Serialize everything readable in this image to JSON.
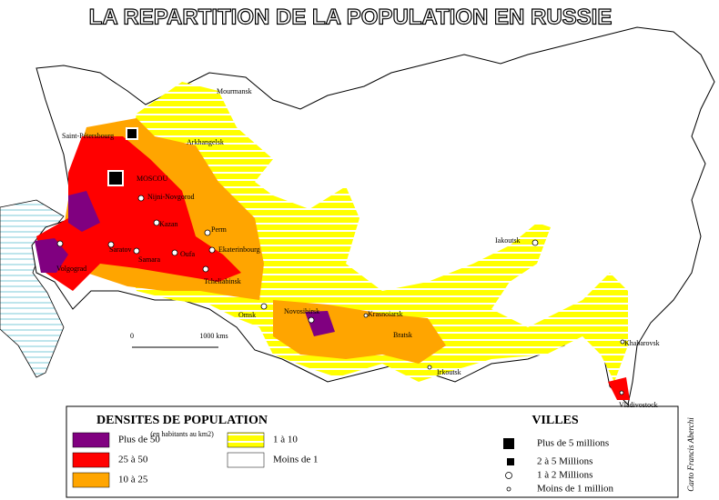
{
  "title": "LA REPARTITION DE LA POPULATION EN RUSSIE",
  "cities": [
    {
      "label": "Mourmansk"
    },
    {
      "label": "Arkhangelsk"
    },
    {
      "label": "Saint-Pétersbourg"
    },
    {
      "label": "MOSCOU"
    },
    {
      "label": "Nijni-Novgorod"
    },
    {
      "label": "Kazan"
    },
    {
      "label": "Perm"
    },
    {
      "label": "Ekaterinbourg"
    },
    {
      "label": "Saratov"
    },
    {
      "label": "Samara"
    },
    {
      "label": "Oufa"
    },
    {
      "label": "Volgograd"
    },
    {
      "label": "Tcheliabinsk"
    },
    {
      "label": "Omsk"
    },
    {
      "label": "Novosibirsk"
    },
    {
      "label": "Krasnoiarsk"
    },
    {
      "label": "Bratsk"
    },
    {
      "label": "Irkoutsk"
    },
    {
      "label": "Iakoutsk"
    },
    {
      "label": "Khabarovsk"
    },
    {
      "label": "Vladivostock"
    }
  ],
  "scale": {
    "start": "0",
    "end": "1000 kms"
  },
  "legend_density": {
    "title": "DENSITES DE POPULATION",
    "subtitle": "(en habitants au km2)",
    "items": [
      "Plus de 50",
      "25 à 50",
      "10 à 25",
      "1 à 10",
      "Moins de 1"
    ]
  },
  "legend_cities": {
    "title": "VILLES",
    "items": [
      "Plus de 5 millions",
      "2 à 5 Millions",
      "1 à 2 Millions",
      "Moins de 1 million"
    ]
  },
  "credit": "Carto Francis Aberchi"
}
